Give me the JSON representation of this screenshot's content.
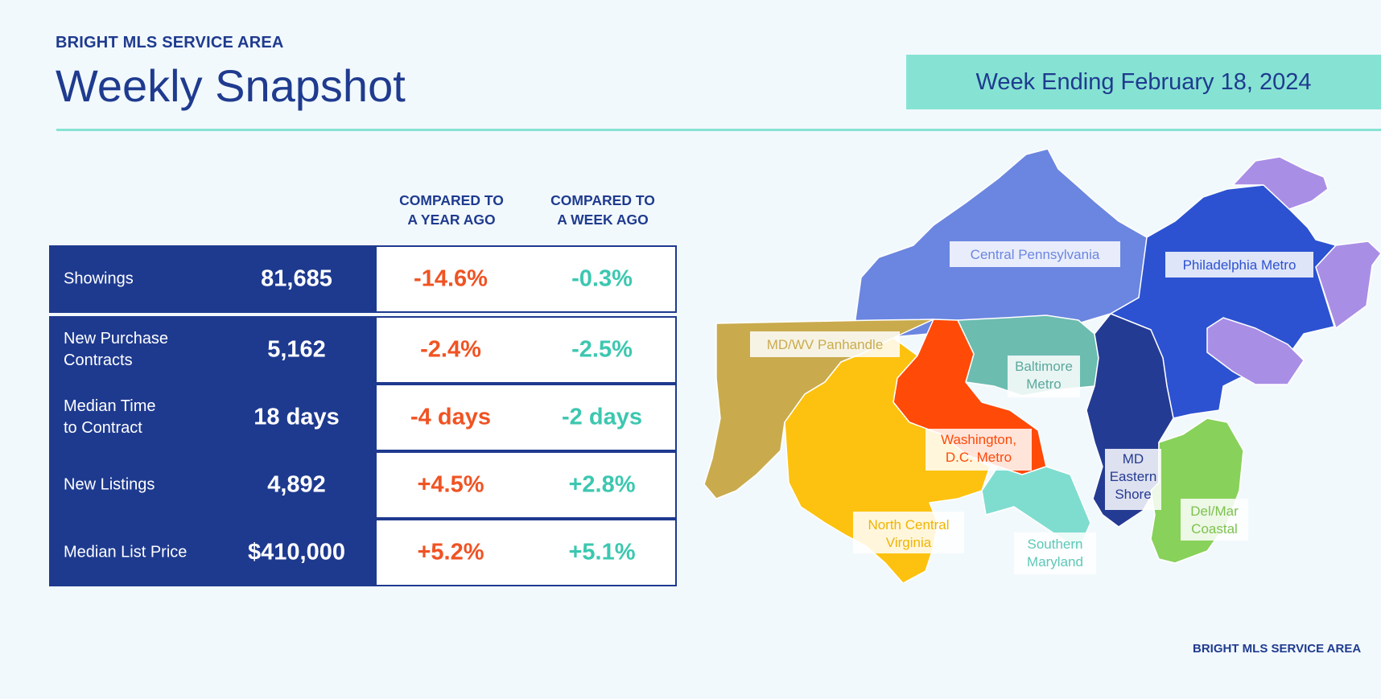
{
  "header": {
    "eyebrow": "BRIGHT MLS SERVICE AREA",
    "title": "Weekly Snapshot",
    "week": "Week Ending February 18, 2024"
  },
  "columns": {
    "year": [
      "COMPARED TO",
      "A YEAR AGO"
    ],
    "week": [
      "COMPARED TO",
      "A WEEK AGO"
    ]
  },
  "rows": [
    {
      "label": "Showings",
      "value": "81,685",
      "vs_year": "-14.6%",
      "vs_week": "-0.3%"
    },
    {
      "label": "New Purchase\nContracts",
      "value": "5,162",
      "vs_year": "-2.4%",
      "vs_week": "-2.5%"
    },
    {
      "label": "Median Time\nto Contract",
      "value": "18 days",
      "vs_year": "-4 days",
      "vs_week": "-2 days"
    },
    {
      "label": "New Listings",
      "value": "4,892",
      "vs_year": "+4.5%",
      "vs_week": "+2.8%"
    },
    {
      "label": "Median List Price",
      "value": "$410,000",
      "vs_year": "+5.2%",
      "vs_week": "+5.1%"
    }
  ],
  "map": {
    "regions": [
      {
        "name": "Central Pennsylvania",
        "color": "#6b86e0"
      },
      {
        "name": "Philadelphia Metro",
        "color": "#2c52d1"
      },
      {
        "name": "MD/WV Panhandle",
        "color": "#c9ab4e"
      },
      {
        "name": "Baltimore Metro",
        "color": "#6cbcb0"
      },
      {
        "name": "Washington, D.C. Metro",
        "color": "#ff4a08"
      },
      {
        "name": "MD Eastern Shore",
        "color": "#243b93"
      },
      {
        "name": "North Central Virginia",
        "color": "#fdc20f"
      },
      {
        "name": "Southern Maryland",
        "color": "#7fddd0"
      },
      {
        "name": "Del/Mar Coastal",
        "color": "#88d15a"
      }
    ],
    "extra_color": "#a98ee6",
    "labels": {
      "central_pa": "Central Pennsylvania",
      "philly": "Philadelphia Metro",
      "panhandle": "MD/WV Panhandle",
      "baltimore": [
        "Baltimore",
        "Metro"
      ],
      "dc": [
        "Washington,",
        "D.C. Metro"
      ],
      "eastern_shore": [
        "MD",
        "Eastern",
        "Shore"
      ],
      "ncva": [
        "North Central",
        "Virginia"
      ],
      "so_md": [
        "Southern",
        "Maryland"
      ],
      "delmar": [
        "Del/Mar",
        "Coastal"
      ]
    },
    "footer": "BRIGHT MLS SERVICE AREA"
  }
}
